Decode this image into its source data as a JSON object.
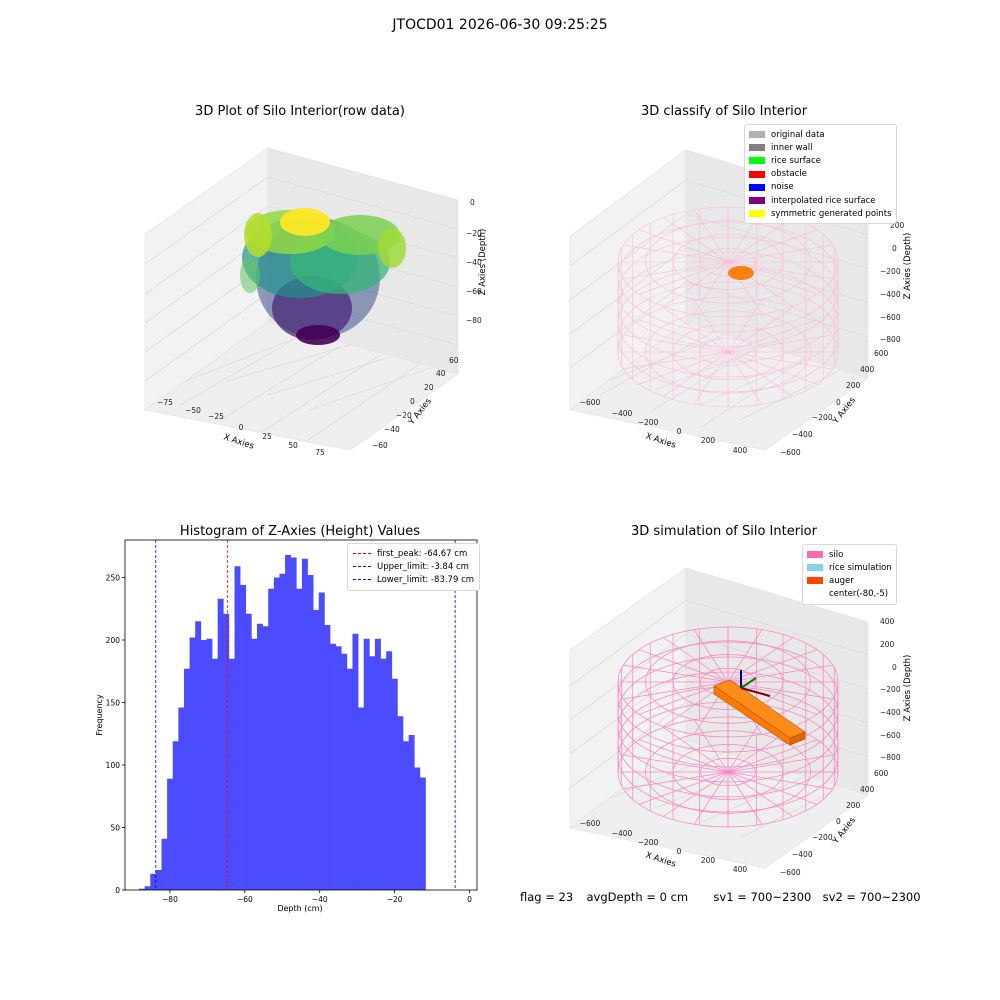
{
  "suptitle": "JTOCD01 2026-06-30 09:25:25",
  "panels": {
    "raw": {
      "title": "3D Plot of Silo Interior(row data)",
      "xlabel": "X Axies",
      "ylabel": "Y Axies",
      "zlabel": "Z Axies (Depth)",
      "xticks": [
        "−75",
        "−50",
        "−25",
        "0",
        "25",
        "50",
        "75"
      ],
      "yticks": [
        "−60",
        "−40",
        "−20",
        "0",
        "20",
        "40",
        "60"
      ],
      "zticks": [
        "0",
        "−20",
        "−40",
        "−60",
        "−80"
      ]
    },
    "classify": {
      "title": "3D classify of Silo Interior",
      "xlabel": "X Axies",
      "ylabel": "Y Axies",
      "zlabel": "Z Axies (Depth)",
      "xticks": [
        "−600",
        "−400",
        "−200",
        "0",
        "200",
        "400"
      ],
      "yticks": [
        "−600",
        "−400",
        "−200",
        "0",
        "200",
        "400",
        "600"
      ],
      "zticks": [
        "200",
        "0",
        "−200",
        "−400",
        "−600",
        "−800"
      ],
      "legend": [
        {
          "label": "original data",
          "color": "#b0b0b0"
        },
        {
          "label": "inner wall",
          "color": "#808080"
        },
        {
          "label": "rice surface",
          "color": "#00ff00"
        },
        {
          "label": "obstacle",
          "color": "#ff0000"
        },
        {
          "label": "noise",
          "color": "#0000ff"
        },
        {
          "label": "interpolated rice surface",
          "color": "#800080"
        },
        {
          "label": "symmetric generated points",
          "color": "#ffff00"
        }
      ]
    },
    "simulation": {
      "title": "3D simulation of Silo Interior",
      "xlabel": "X Axies",
      "ylabel": "Y Axies",
      "zlabel": "Z Axies (Depth)",
      "xticks": [
        "−600",
        "−400",
        "−200",
        "0",
        "200",
        "400"
      ],
      "yticks": [
        "−600",
        "−400",
        "−200",
        "0",
        "200",
        "400",
        "600"
      ],
      "zticks": [
        "400",
        "200",
        "0",
        "−200",
        "−400",
        "−600",
        "−800"
      ],
      "legend": [
        {
          "label": "silo",
          "color": "#ff69b4"
        },
        {
          "label": "rice simulation",
          "color": "#87ceeb"
        },
        {
          "label": "auger",
          "color": "#ff4500"
        },
        {
          "label": "center(-80,-5)",
          "color": "#ffffff"
        }
      ]
    }
  },
  "chart_data": {
    "type": "bar",
    "title": "Histogram of Z-Axies (Height) Values",
    "xlabel": "Depth (cm)",
    "ylabel": "Frequency",
    "xlim": [
      -92,
      2
    ],
    "ylim": [
      0,
      280
    ],
    "xticks": [
      -80,
      -60,
      -40,
      -20,
      0
    ],
    "yticks": [
      0,
      50,
      100,
      150,
      200,
      250
    ],
    "bar_color": "#4b4bff",
    "bin_start": -88.25,
    "bin_width": 1.5,
    "values": [
      1,
      3,
      13,
      16,
      41,
      89,
      119,
      146,
      177,
      202,
      215,
      200,
      201,
      185,
      233,
      221,
      185,
      259,
      244,
      221,
      201,
      213,
      211,
      241,
      250,
      253,
      268,
      266,
      241,
      265,
      252,
      224,
      238,
      212,
      197,
      195,
      189,
      177,
      205,
      146,
      201,
      187,
      201,
      185,
      191,
      169,
      139,
      119,
      124,
      98,
      90
    ],
    "vlines": [
      {
        "label": "first_peak: -64.67 cm",
        "x": -64.67,
        "color": "#ff0000"
      },
      {
        "label": "Upper_limit: -3.84 cm",
        "x": -3.84,
        "color": "#0000ff"
      },
      {
        "label": "Lower_limit: -83.79 cm",
        "x": -83.79,
        "color": "#0000ff"
      }
    ]
  },
  "status": {
    "flag": "flag = 23",
    "avg_depth": "avgDepth = 0 cm",
    "sv1": "sv1 = 700~2300",
    "sv2": "sv2 = 700~2300"
  }
}
